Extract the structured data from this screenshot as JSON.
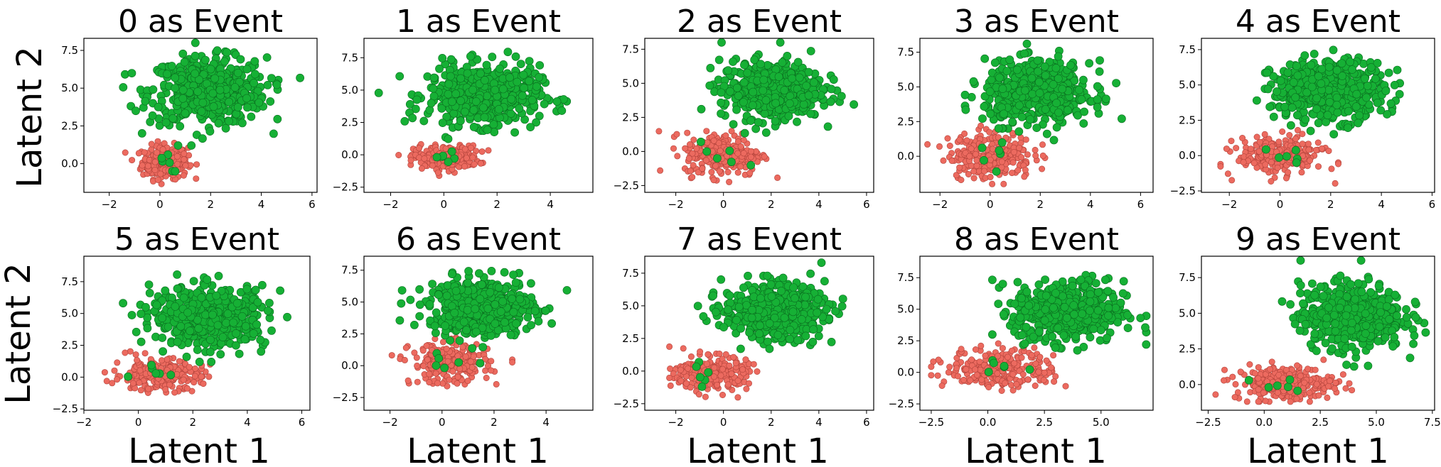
{
  "figure": {
    "shared_xlabel": "Latent 1",
    "shared_ylabel": "Latent 2"
  },
  "colors": {
    "event": "#16b035",
    "event_edge": "#0b6e20",
    "non_event": "#ec6a5f",
    "non_event_edge": "#b0423a"
  },
  "chart_data": [
    {
      "type": "scatter",
      "title": "0 as Event",
      "xlim": [
        -3,
        6.2
      ],
      "ylim": [
        -1.9,
        8.3
      ],
      "xticks": [
        -2,
        0,
        2,
        4,
        6
      ],
      "xtick_labels": [
        "−2",
        "0",
        "2",
        "4",
        "6"
      ],
      "yticks": [
        0,
        2.5,
        5,
        7.5
      ],
      "ytick_labels": [
        "0.0",
        "2.5",
        "5.0",
        "7.5"
      ],
      "xlabel": "",
      "ylabel": "Latent 2",
      "series": [
        {
          "color": "#16b035",
          "center": [
            1.9,
            4.8
          ],
          "spread": [
            1.15,
            1.1
          ],
          "extent": [
            -1.8,
            5.8,
            1.2,
            8.0
          ]
        },
        {
          "color": "#ec6a5f",
          "center": [
            0.2,
            0.1
          ],
          "spread": [
            0.45,
            0.55
          ],
          "extent": [
            -2.8,
            2.3,
            -1.6,
            2.1
          ]
        }
      ]
    },
    {
      "type": "scatter",
      "title": "1 as Event",
      "xlim": [
        -3,
        5.6
      ],
      "ylim": [
        -2.9,
        9.0
      ],
      "xticks": [
        -2,
        0,
        2,
        4
      ],
      "xtick_labels": [
        "−2",
        "0",
        "2",
        "4"
      ],
      "yticks": [
        -2.5,
        0,
        2.5,
        5,
        7.5
      ],
      "ytick_labels": [
        "−2.5",
        "0.0",
        "2.5",
        "5.0",
        "7.5"
      ],
      "xlabel": "",
      "ylabel": "",
      "series": [
        {
          "color": "#16b035",
          "center": [
            1.5,
            4.6
          ],
          "spread": [
            1.05,
            1.15
          ],
          "extent": [
            -2.5,
            5.4,
            0.5,
            8.6
          ]
        },
        {
          "color": "#ec6a5f",
          "center": [
            0.1,
            -0.2
          ],
          "spread": [
            0.6,
            0.45
          ],
          "extent": [
            -2.2,
            2.6,
            -2.2,
            2.3
          ]
        }
      ]
    },
    {
      "type": "scatter",
      "title": "2 as Event",
      "xlim": [
        -3.3,
        6.3
      ],
      "ylim": [
        -3.0,
        8.3
      ],
      "xticks": [
        -2,
        0,
        2,
        4,
        6
      ],
      "xtick_labels": [
        "−2",
        "0",
        "2",
        "4",
        "6"
      ],
      "yticks": [
        -2.5,
        0,
        2.5,
        5,
        7.5
      ],
      "ytick_labels": [
        "−2.5",
        "0.0",
        "2.5",
        "5.0",
        "7.5"
      ],
      "xlabel": "",
      "ylabel": "",
      "series": [
        {
          "color": "#16b035",
          "center": [
            2.0,
            4.5
          ],
          "spread": [
            1.05,
            1.05
          ],
          "extent": [
            -1.2,
            6.0,
            0.5,
            8.0
          ]
        },
        {
          "color": "#ec6a5f",
          "center": [
            0.0,
            -0.2
          ],
          "spread": [
            0.8,
            0.8
          ],
          "extent": [
            -3.0,
            2.5,
            -2.5,
            3.2
          ]
        }
      ]
    },
    {
      "type": "scatter",
      "title": "3 as Event",
      "xlim": [
        -2.8,
        6.5
      ],
      "ylim": [
        -2.6,
        8.5
      ],
      "xticks": [
        -2,
        0,
        2,
        4,
        6
      ],
      "xtick_labels": [
        "−2",
        "0",
        "2",
        "4",
        "6"
      ],
      "yticks": [
        0,
        2.5,
        5,
        7.5
      ],
      "ytick_labels": [
        "0.0",
        "2.5",
        "5.0",
        "7.5"
      ],
      "xlabel": "",
      "ylabel": "",
      "series": [
        {
          "color": "#16b035",
          "center": [
            1.9,
            4.6
          ],
          "spread": [
            1.05,
            1.1
          ],
          "extent": [
            -1.0,
            6.1,
            1.0,
            8.1
          ]
        },
        {
          "color": "#ec6a5f",
          "center": [
            0.0,
            0.1
          ],
          "spread": [
            0.85,
            0.85
          ],
          "extent": [
            -2.6,
            2.7,
            -2.0,
            3.0
          ]
        }
      ]
    },
    {
      "type": "scatter",
      "title": "4 as Event",
      "xlim": [
        -3.1,
        6.1
      ],
      "ylim": [
        -2.6,
        8.3
      ],
      "xticks": [
        -2,
        0,
        2,
        4,
        6
      ],
      "xtick_labels": [
        "−2",
        "0",
        "2",
        "4",
        "6"
      ],
      "yticks": [
        -2.5,
        0,
        2.5,
        5,
        7.5
      ],
      "ytick_labels": [
        "−2.5",
        "0.0",
        "2.5",
        "5.0",
        "7.5"
      ],
      "xlabel": "",
      "ylabel": "",
      "series": [
        {
          "color": "#16b035",
          "center": [
            1.9,
            4.6
          ],
          "spread": [
            1.1,
            1.05
          ],
          "extent": [
            -1.2,
            5.8,
            1.0,
            8.0
          ]
        },
        {
          "color": "#ec6a5f",
          "center": [
            0.0,
            0.0
          ],
          "spread": [
            0.85,
            0.65
          ],
          "extent": [
            -2.5,
            2.3,
            -2.0,
            3.0
          ]
        }
      ]
    },
    {
      "type": "scatter",
      "title": "5 as Event",
      "xlim": [
        -2.0,
        6.3
      ],
      "ylim": [
        -2.6,
        9.5
      ],
      "xticks": [
        -2,
        0,
        2,
        4,
        6
      ],
      "xtick_labels": [
        "−2",
        "0",
        "2",
        "4",
        "6"
      ],
      "yticks": [
        -2.5,
        0,
        2.5,
        5,
        7.5
      ],
      "ytick_labels": [
        "−2.5",
        "0.0",
        "2.5",
        "5.0",
        "7.5"
      ],
      "xlabel": "Latent 1",
      "ylabel": "Latent 2",
      "series": [
        {
          "color": "#16b035",
          "center": [
            2.6,
            4.8
          ],
          "spread": [
            1.05,
            1.15
          ],
          "extent": [
            -1.2,
            6.0,
            1.2,
            9.2
          ]
        },
        {
          "color": "#ec6a5f",
          "center": [
            0.7,
            0.2
          ],
          "spread": [
            0.8,
            0.6
          ],
          "extent": [
            -1.6,
            2.8,
            -2.0,
            3.2
          ]
        }
      ]
    },
    {
      "type": "scatter",
      "title": "6 as Event",
      "xlim": [
        -3.0,
        5.8
      ],
      "ylim": [
        -3.5,
        8.6
      ],
      "xticks": [
        -2,
        0,
        2,
        4
      ],
      "xtick_labels": [
        "−2",
        "0",
        "2",
        "4"
      ],
      "yticks": [
        -2.5,
        0,
        2.5,
        5,
        7.5
      ],
      "ytick_labels": [
        "−2.5",
        "0.0",
        "2.5",
        "5.0",
        "7.5"
      ],
      "xlabel": "Latent 1",
      "ylabel": "",
      "series": [
        {
          "color": "#16b035",
          "center": [
            1.5,
            4.6
          ],
          "spread": [
            1.0,
            1.1
          ],
          "extent": [
            -1.8,
            5.5,
            1.2,
            8.0
          ]
        },
        {
          "color": "#ec6a5f",
          "center": [
            0.3,
            0.2
          ],
          "spread": [
            0.75,
            0.8
          ],
          "extent": [
            -2.8,
            2.7,
            -3.2,
            3.6
          ]
        }
      ]
    },
    {
      "type": "scatter",
      "title": "7 as Event",
      "xlim": [
        -3.3,
        6.3
      ],
      "ylim": [
        -3.0,
        8.8
      ],
      "xticks": [
        -2,
        0,
        2,
        4,
        6
      ],
      "xtick_labels": [
        "−2",
        "0",
        "2",
        "4",
        "6"
      ],
      "yticks": [
        -2.5,
        0,
        2.5,
        5,
        7.5
      ],
      "ytick_labels": [
        "−2.5",
        "0.0",
        "2.5",
        "5.0",
        "7.5"
      ],
      "xlabel": "Latent 1",
      "ylabel": "",
      "series": [
        {
          "color": "#16b035",
          "center": [
            2.1,
            4.6
          ],
          "spread": [
            1.05,
            1.05
          ],
          "extent": [
            -1.2,
            6.0,
            1.0,
            8.3
          ]
        },
        {
          "color": "#ec6a5f",
          "center": [
            -0.5,
            -0.2
          ],
          "spread": [
            0.75,
            0.65
          ],
          "extent": [
            -3.0,
            2.7,
            -2.7,
            2.8
          ]
        }
      ]
    },
    {
      "type": "scatter",
      "title": "8 as Event",
      "xlim": [
        -3.0,
        7.3
      ],
      "ylim": [
        -3.0,
        9.2
      ],
      "xticks": [
        -2.5,
        0,
        2.5,
        5
      ],
      "xtick_labels": [
        "−2.5",
        "0.0",
        "2.5",
        "5.0"
      ],
      "yticks": [
        -2.5,
        0,
        2.5,
        5,
        7.5
      ],
      "ytick_labels": [
        "−2.5",
        "0.0",
        "2.5",
        "5.0",
        "7.5"
      ],
      "xlabel": "Latent 1",
      "ylabel": "",
      "series": [
        {
          "color": "#16b035",
          "center": [
            3.6,
            4.8
          ],
          "spread": [
            1.2,
            1.2
          ],
          "extent": [
            0.2,
            7.0,
            1.2,
            8.8
          ]
        },
        {
          "color": "#ec6a5f",
          "center": [
            0.6,
            0.3
          ],
          "spread": [
            1.2,
            0.8
          ],
          "extent": [
            -2.5,
            4.0,
            -2.2,
            4.8
          ]
        }
      ]
    },
    {
      "type": "scatter",
      "title": "9 as Event",
      "xlim": [
        -2.8,
        7.6
      ],
      "ylim": [
        -1.8,
        9.0
      ],
      "xticks": [
        -2.5,
        0,
        2.5,
        5,
        7.5
      ],
      "xtick_labels": [
        "−2.5",
        "0.0",
        "2.5",
        "5.0",
        "7.5"
      ],
      "yticks": [
        0,
        2.5,
        5,
        7.5
      ],
      "ytick_labels": [
        "0.0",
        "2.5",
        "5.0",
        "7.5"
      ],
      "xlabel": "Latent 1",
      "ylabel": "",
      "series": [
        {
          "color": "#16b035",
          "center": [
            3.9,
            4.8
          ],
          "spread": [
            1.15,
            1.15
          ],
          "extent": [
            0.8,
            7.2,
            1.2,
            8.7
          ]
        },
        {
          "color": "#ec6a5f",
          "center": [
            0.9,
            0.1
          ],
          "spread": [
            1.1,
            0.6
          ],
          "extent": [
            -2.2,
            4.2,
            -1.2,
            4.0
          ]
        }
      ]
    }
  ]
}
